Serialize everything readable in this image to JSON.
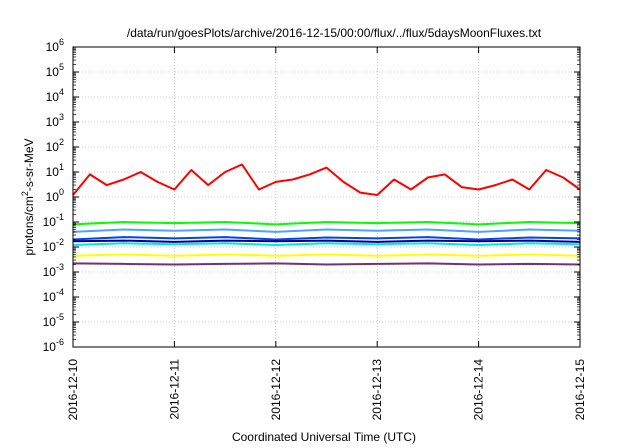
{
  "chart_data": {
    "type": "line",
    "title": "/data/run/goesPlots/archive/2016-12-15/00:00/flux/../flux/5daysMoonFluxes.txt",
    "xlabel": "Coordinated Universal Time (UTC)",
    "ylabel": {
      "main": "protons/cm",
      "sup": "2",
      "rest": "-s-sr-MeV"
    },
    "y_scale": "log",
    "ylim": [
      1e-06,
      1000000.0
    ],
    "xlim": [
      "2016-12-10",
      "2016-12-15"
    ],
    "x_ticks": [
      "2016-12-10",
      "2016-12-11",
      "2016-12-12",
      "2016-12-13",
      "2016-12-14",
      "2016-12-15"
    ],
    "y_ticks": [
      {
        "base": "10",
        "exp": "-6"
      },
      {
        "base": "10",
        "exp": "-5"
      },
      {
        "base": "10",
        "exp": "-4"
      },
      {
        "base": "10",
        "exp": "-3"
      },
      {
        "base": "10",
        "exp": "-2"
      },
      {
        "base": "10",
        "exp": "-1"
      },
      {
        "base": "10",
        "exp": "0"
      },
      {
        "base": "10",
        "exp": "1"
      },
      {
        "base": "10",
        "exp": "2"
      },
      {
        "base": "10",
        "exp": "3"
      },
      {
        "base": "10",
        "exp": "4"
      },
      {
        "base": "10",
        "exp": "5"
      },
      {
        "base": "10",
        "exp": "6"
      }
    ],
    "grid": true,
    "series": [
      {
        "color": "#ff0000",
        "x": [
          "2016-12-10T00:00",
          "2016-12-10T04:00",
          "2016-12-10T08:00",
          "2016-12-10T12:00",
          "2016-12-10T16:00",
          "2016-12-10T20:00",
          "2016-12-11T00:00",
          "2016-12-11T04:00",
          "2016-12-11T08:00",
          "2016-12-11T12:00",
          "2016-12-11T16:00",
          "2016-12-11T20:00",
          "2016-12-12T00:00",
          "2016-12-12T04:00",
          "2016-12-12T08:00",
          "2016-12-12T12:00",
          "2016-12-12T16:00",
          "2016-12-12T20:00",
          "2016-12-13T00:00",
          "2016-12-13T04:00",
          "2016-12-13T08:00",
          "2016-12-13T12:00",
          "2016-12-13T16:00",
          "2016-12-13T20:00",
          "2016-12-14T00:00",
          "2016-12-14T04:00",
          "2016-12-14T08:00",
          "2016-12-14T12:00",
          "2016-12-14T16:00",
          "2016-12-14T20:00",
          "2016-12-15T00:00"
        ],
        "y": [
          1.2,
          8,
          3,
          5,
          10,
          4,
          2,
          12,
          3,
          10,
          20,
          2,
          4,
          5,
          8,
          15,
          4,
          1.5,
          1.2,
          5,
          2,
          6,
          8,
          2.5,
          2,
          3,
          5,
          2,
          12,
          6,
          2
        ]
      },
      {
        "color": "#00ff00",
        "x": [
          "2016-12-10T00:00",
          "2016-12-10T12:00",
          "2016-12-11T00:00",
          "2016-12-11T12:00",
          "2016-12-12T00:00",
          "2016-12-12T12:00",
          "2016-12-13T00:00",
          "2016-12-13T12:00",
          "2016-12-14T00:00",
          "2016-12-14T12:00",
          "2016-12-15T00:00"
        ],
        "y": [
          0.08,
          0.1,
          0.09,
          0.1,
          0.08,
          0.1,
          0.09,
          0.1,
          0.08,
          0.1,
          0.09
        ]
      },
      {
        "color": "#4aa3ff",
        "x": [
          "2016-12-10T00:00",
          "2016-12-10T12:00",
          "2016-12-11T00:00",
          "2016-12-11T12:00",
          "2016-12-12T00:00",
          "2016-12-12T12:00",
          "2016-12-13T00:00",
          "2016-12-13T12:00",
          "2016-12-14T00:00",
          "2016-12-14T12:00",
          "2016-12-15T00:00"
        ],
        "y": [
          0.04,
          0.05,
          0.045,
          0.05,
          0.04,
          0.05,
          0.045,
          0.05,
          0.04,
          0.05,
          0.045
        ]
      },
      {
        "color": "#0044ee",
        "x": [
          "2016-12-10T00:00",
          "2016-12-10T12:00",
          "2016-12-11T00:00",
          "2016-12-11T12:00",
          "2016-12-12T00:00",
          "2016-12-12T12:00",
          "2016-12-13T00:00",
          "2016-12-13T12:00",
          "2016-12-14T00:00",
          "2016-12-14T12:00",
          "2016-12-15T00:00"
        ],
        "y": [
          0.02,
          0.025,
          0.022,
          0.025,
          0.02,
          0.024,
          0.022,
          0.025,
          0.02,
          0.024,
          0.022
        ]
      },
      {
        "color": "#00e5e5",
        "x": [
          "2016-12-10T00:00",
          "2016-12-10T12:00",
          "2016-12-11T00:00",
          "2016-12-11T12:00",
          "2016-12-12T00:00",
          "2016-12-12T12:00",
          "2016-12-13T00:00",
          "2016-12-13T12:00",
          "2016-12-14T00:00",
          "2016-12-14T12:00",
          "2016-12-15T00:00"
        ],
        "y": [
          0.012,
          0.014,
          0.013,
          0.014,
          0.012,
          0.014,
          0.013,
          0.014,
          0.012,
          0.014,
          0.013
        ]
      },
      {
        "color": "#000080",
        "x": [
          "2016-12-10T00:00",
          "2016-12-10T12:00",
          "2016-12-11T00:00",
          "2016-12-11T12:00",
          "2016-12-12T00:00",
          "2016-12-12T12:00",
          "2016-12-13T00:00",
          "2016-12-13T12:00",
          "2016-12-14T00:00",
          "2016-12-14T12:00",
          "2016-12-15T00:00"
        ],
        "y": [
          0.017,
          0.018,
          0.016,
          0.018,
          0.017,
          0.018,
          0.016,
          0.018,
          0.017,
          0.018,
          0.016
        ]
      },
      {
        "color": "#ffff00",
        "x": [
          "2016-12-10T00:00",
          "2016-12-10T12:00",
          "2016-12-11T00:00",
          "2016-12-11T12:00",
          "2016-12-12T00:00",
          "2016-12-12T12:00",
          "2016-12-13T00:00",
          "2016-12-13T12:00",
          "2016-12-14T00:00",
          "2016-12-14T12:00",
          "2016-12-15T00:00"
        ],
        "y": [
          0.0045,
          0.005,
          0.0045,
          0.005,
          0.0045,
          0.005,
          0.0045,
          0.005,
          0.0045,
          0.005,
          0.0045
        ]
      },
      {
        "color": "#7a3070",
        "x": [
          "2016-12-10T00:00",
          "2016-12-10T12:00",
          "2016-12-11T00:00",
          "2016-12-11T12:00",
          "2016-12-12T00:00",
          "2016-12-12T12:00",
          "2016-12-13T00:00",
          "2016-12-13T12:00",
          "2016-12-14T00:00",
          "2016-12-14T12:00",
          "2016-12-15T00:00"
        ],
        "y": [
          0.0022,
          0.0021,
          0.002,
          0.0021,
          0.0022,
          0.002,
          0.0021,
          0.0022,
          0.002,
          0.0021,
          0.002
        ]
      }
    ]
  }
}
